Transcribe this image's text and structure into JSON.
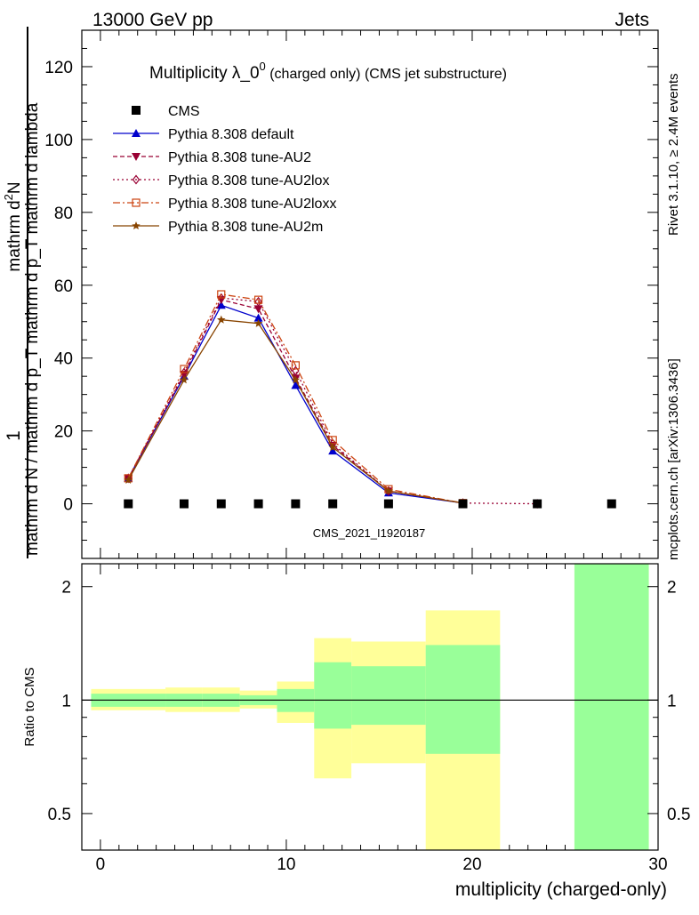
{
  "header": {
    "left": "13000 GeV pp",
    "right": "Jets"
  },
  "side": {
    "rivet": "Rivet 3.1.10, ≥ 2.4M events",
    "mcplots": "mcplots.cern.ch [arXiv:1306.3436]"
  },
  "chart_data": {
    "type": "line",
    "title": "Multiplicity λ_0",
    "title_sup": "0",
    "title_suffix": " (charged only) (CMS jet substructure)",
    "watermark": "CMS_2021_I1920187",
    "xlabel": "multiplicity (charged-only)",
    "ylabel_top": "mathrm d",
    "ylabel_top_sup": "2",
    "ylabel_top_rest": "N",
    "ylabel_bottom": "mathrm d N / mathrm d p_T mathrm d p_T mathrm d lambda",
    "ylabel_one": "1",
    "ratio_ylabel": "Ratio to CMS",
    "xlim": [
      -1,
      30
    ],
    "ylim": [
      -15,
      130
    ],
    "xticks": [
      0,
      10,
      20,
      30
    ],
    "yticks": [
      0,
      20,
      40,
      60,
      80,
      100,
      120
    ],
    "ratio_ylim": [
      0.4,
      2.3
    ],
    "ratio_yticks": [
      "0.5",
      "1",
      "2"
    ],
    "ratio_ytick_values": [
      0.5,
      1,
      2
    ],
    "data": {
      "name": "CMS",
      "x": [
        1.5,
        4.5,
        6.5,
        8.5,
        10.5,
        12.5,
        15.5,
        19.5,
        23.5,
        27.5
      ],
      "y": [
        0,
        0,
        0,
        0,
        0,
        0,
        0,
        0,
        0,
        0
      ]
    },
    "series": [
      {
        "name": "Pythia 8.308 default",
        "color": "#0000cc",
        "marker": "triangle-up",
        "dash": "solid",
        "x": [
          1.5,
          4.5,
          6.5,
          8.5,
          10.5,
          12.5,
          15.5,
          19.5
        ],
        "y": [
          7,
          35,
          54.5,
          51,
          32.5,
          14.5,
          3,
          0.2
        ]
      },
      {
        "name": "Pythia 8.308 tune-AU2",
        "color": "#990033",
        "marker": "triangle-down",
        "dash": "5,3",
        "x": [
          1.5,
          4.5,
          6.5,
          8.5,
          10.5,
          12.5,
          15.5,
          19.5
        ],
        "y": [
          7,
          35.5,
          56,
          53.5,
          34.5,
          16,
          3.5,
          0.2
        ]
      },
      {
        "name": "Pythia 8.308 tune-AU2lox",
        "color": "#990033",
        "marker": "diamond",
        "dash": "2,3",
        "x": [
          1.5,
          4.5,
          6.5,
          8.5,
          10.5,
          12.5,
          15.5,
          19.5,
          23.5
        ],
        "y": [
          7,
          36,
          56.5,
          55.5,
          36.5,
          16.5,
          3.5,
          0.2,
          0
        ]
      },
      {
        "name": "Pythia 8.308 tune-AU2loxx",
        "color": "#cc4411",
        "marker": "square-open",
        "dash": "8,3,2,3",
        "x": [
          1.5,
          4.5,
          6.5,
          8.5,
          10.5,
          12.5,
          15.5,
          19.5
        ],
        "y": [
          7,
          37,
          57.5,
          56,
          38,
          17.5,
          4,
          0.2
        ]
      },
      {
        "name": "Pythia 8.308 tune-AU2m",
        "color": "#884400",
        "marker": "star",
        "dash": "solid",
        "x": [
          1.5,
          4.5,
          6.5,
          8.5,
          10.5,
          12.5,
          15.5,
          19.5
        ],
        "y": [
          6.5,
          34,
          50.5,
          49.5,
          34,
          15.5,
          3.5,
          0.2
        ]
      }
    ],
    "ratio_bands": [
      {
        "x0": -0.5,
        "x1": 3.5,
        "yellow": [
          0.94,
          1.07
        ],
        "green": [
          0.96,
          1.04
        ]
      },
      {
        "x0": 3.5,
        "x1": 5.5,
        "yellow": [
          0.93,
          1.08
        ],
        "green": [
          0.96,
          1.04
        ]
      },
      {
        "x0": 5.5,
        "x1": 7.5,
        "yellow": [
          0.93,
          1.08
        ],
        "green": [
          0.96,
          1.04
        ]
      },
      {
        "x0": 7.5,
        "x1": 9.5,
        "yellow": [
          0.95,
          1.06
        ],
        "green": [
          0.97,
          1.03
        ]
      },
      {
        "x0": 9.5,
        "x1": 11.5,
        "yellow": [
          0.87,
          1.12
        ],
        "green": [
          0.93,
          1.07
        ]
      },
      {
        "x0": 11.5,
        "x1": 13.5,
        "yellow": [
          0.62,
          1.46
        ],
        "green": [
          0.84,
          1.26
        ]
      },
      {
        "x0": 13.5,
        "x1": 17.5,
        "yellow": [
          0.68,
          1.43
        ],
        "green": [
          0.86,
          1.23
        ]
      },
      {
        "x0": 17.5,
        "x1": 21.5,
        "yellow": [
          0.35,
          1.73
        ],
        "green": [
          0.72,
          1.4
        ]
      },
      {
        "x0": 25.5,
        "x1": 29.5,
        "yellow": [
          0.35,
          2.3
        ],
        "green": [
          0.35,
          2.3
        ]
      }
    ],
    "colors": {
      "yellow": "#ffff99",
      "green": "#99ff99"
    }
  }
}
